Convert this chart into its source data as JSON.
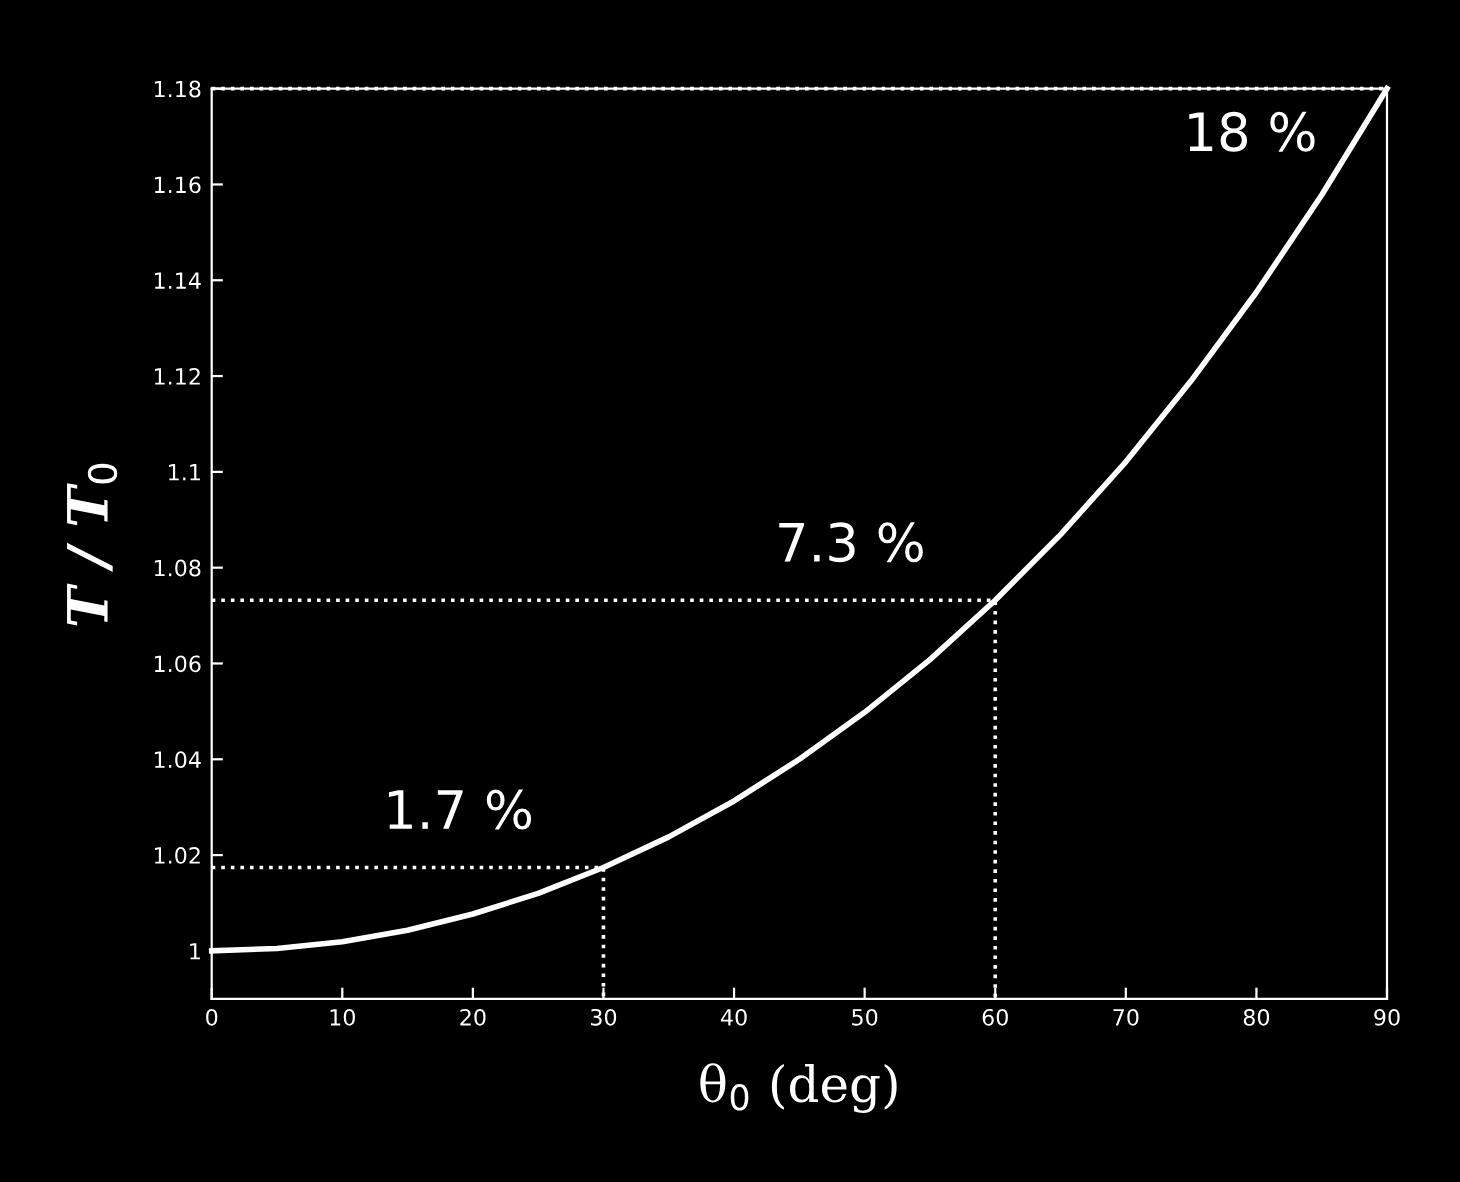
{
  "chart_data": {
    "type": "line",
    "xlabel": "θ$_{0}$ (deg)",
    "ylabel": "T / T$_{0}$",
    "xlim": [
      0,
      90
    ],
    "xticks": [
      0,
      10,
      20,
      30,
      40,
      50,
      60,
      70,
      80,
      90
    ],
    "ylim": [
      0.99,
      1.18
    ],
    "yticks": [
      1,
      1.02,
      1.04,
      1.06,
      1.08,
      {
        "value": 1.1,
        "label": "1.1"
      },
      1.12,
      1.14,
      1.16,
      1.18
    ],
    "grid": false,
    "legend": false,
    "marker": "none",
    "series": [
      {
        "color": "#ffffff",
        "line_style": "solid",
        "x": [
          0,
          5,
          10,
          15,
          20,
          25,
          30,
          35,
          40,
          45,
          50,
          55,
          60,
          65,
          70,
          75,
          80,
          85,
          90
        ],
        "values": [
          1,
          1.0005,
          1.0019,
          1.0043,
          1.0077,
          1.012,
          1.0174,
          1.0238,
          1.0313,
          1.04,
          1.0498,
          1.0608,
          1.0732,
          1.0869,
          1.1021,
          1.119,
          1.1375,
          1.1578,
          1.18
        ]
      },
      {
        "color": "#ffffff",
        "line_style": "dotted",
        "x": [
          0,
          30,
          30
        ],
        "values": [
          1.0174,
          1.0174,
          0.99
        ]
      },
      {
        "color": "#ffffff",
        "line_style": "dotted",
        "x": [
          0,
          60,
          60
        ],
        "values": [
          1.0732,
          1.0732,
          0.99
        ]
      },
      {
        "color": "#ffffff",
        "line_style": "dotted",
        "x": [
          0,
          90
        ],
        "values": [
          1.18,
          1.18
        ]
      }
    ],
    "annotations": [
      {
        "text": "1.7 %",
        "x": 30,
        "y": 1.0174
      },
      {
        "text": "7.3 %",
        "x": 60,
        "y": 1.0732
      },
      {
        "text": "18 %",
        "x": 90,
        "y": 1.18
      }
    ]
  }
}
